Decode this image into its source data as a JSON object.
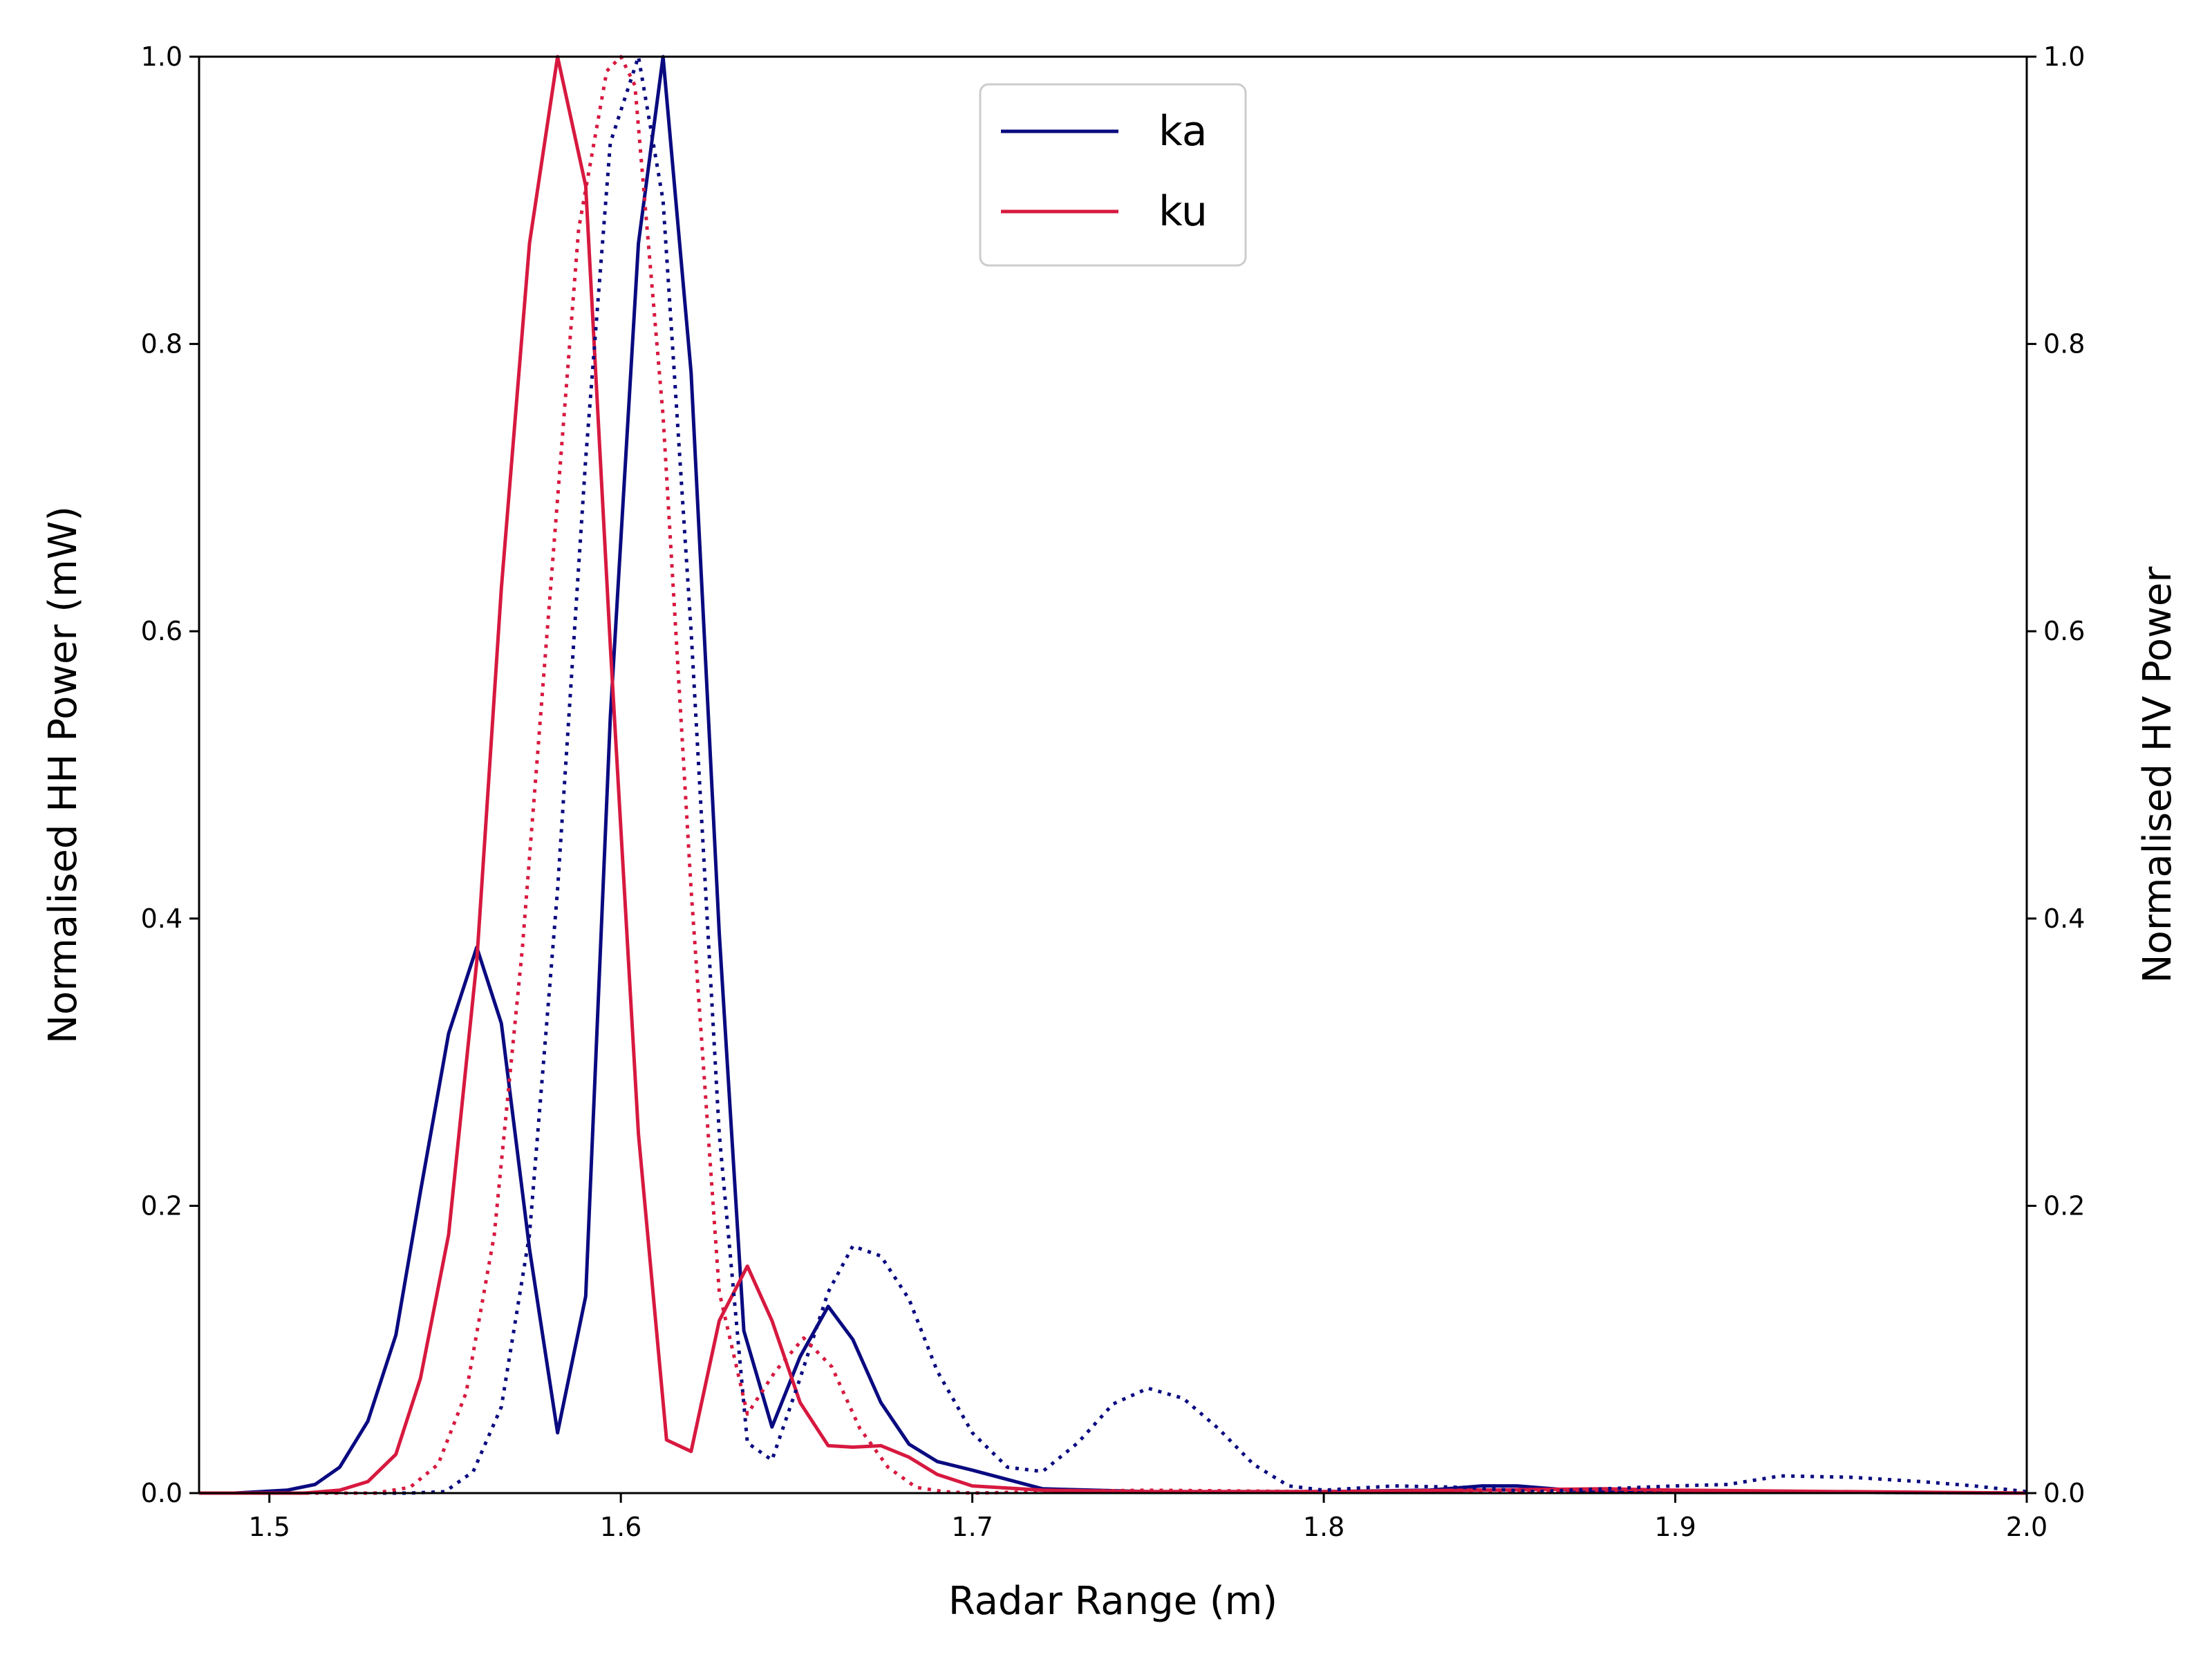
{
  "chart_data": {
    "type": "line",
    "title": "",
    "xlabel": "Radar Range (m)",
    "ylabel": "Normalised HH Power (mW)",
    "y2label": "Normalised HV Power",
    "xlim": [
      1.48,
      2.0
    ],
    "ylim": [
      0.0,
      1.0
    ],
    "y2lim": [
      0.0,
      1.0
    ],
    "xticks": [
      "1.5",
      "1.6",
      "1.7",
      "1.8",
      "1.9",
      "2.0"
    ],
    "yticks": [
      "0.0",
      "0.2",
      "0.4",
      "0.6",
      "0.8",
      "1.0"
    ],
    "y2ticks": [
      "0.0",
      "0.2",
      "0.4",
      "0.6",
      "0.8",
      "1.0"
    ],
    "grid": false,
    "legend": {
      "placement": "upper-center",
      "entries": [
        "ka",
        "ku"
      ]
    },
    "colors": {
      "ka": "#0a0a80",
      "ku": "#d7193f"
    },
    "series": [
      {
        "name": "ka",
        "axis": "HH",
        "style": "solid",
        "color": "#0a0a80",
        "x": [
          1.48,
          1.49,
          1.505,
          1.513,
          1.52,
          1.528,
          1.536,
          1.543,
          1.551,
          1.559,
          1.566,
          1.574,
          1.582,
          1.59,
          1.597,
          1.605,
          1.612,
          1.62,
          1.628,
          1.635,
          1.643,
          1.651,
          1.659,
          1.666,
          1.674,
          1.682,
          1.69,
          1.7,
          1.72,
          1.75,
          1.8,
          1.83,
          1.845,
          1.855,
          1.87,
          1.9,
          2.0
        ],
        "y": [
          0.0,
          0.0,
          0.002,
          0.006,
          0.018,
          0.05,
          0.11,
          0.21,
          0.32,
          0.38,
          0.327,
          0.17,
          0.042,
          0.137,
          0.54,
          0.87,
          1.0,
          0.78,
          0.39,
          0.113,
          0.046,
          0.095,
          0.13,
          0.107,
          0.063,
          0.034,
          0.022,
          0.016,
          0.003,
          0.001,
          0.001,
          0.002,
          0.005,
          0.005,
          0.002,
          0.001,
          0.0
        ]
      },
      {
        "name": "ku",
        "axis": "HH",
        "style": "solid",
        "color": "#d7193f",
        "x": [
          1.48,
          1.51,
          1.52,
          1.528,
          1.536,
          1.543,
          1.551,
          1.559,
          1.566,
          1.574,
          1.582,
          1.59,
          1.597,
          1.605,
          1.613,
          1.62,
          1.628,
          1.636,
          1.643,
          1.651,
          1.659,
          1.666,
          1.674,
          1.682,
          1.69,
          1.7,
          1.72,
          1.75,
          1.8,
          1.88,
          1.9,
          2.0
        ],
        "y": [
          0.0,
          0.0,
          0.002,
          0.008,
          0.027,
          0.08,
          0.18,
          0.37,
          0.63,
          0.87,
          1.0,
          0.91,
          0.59,
          0.25,
          0.037,
          0.029,
          0.12,
          0.158,
          0.12,
          0.063,
          0.033,
          0.032,
          0.033,
          0.025,
          0.013,
          0.005,
          0.002,
          0.001,
          0.001,
          0.003,
          0.002,
          0.0
        ]
      },
      {
        "name": "ka",
        "axis": "HV",
        "style": "dotted",
        "color": "#0a0a80",
        "x": [
          1.48,
          1.54,
          1.55,
          1.558,
          1.566,
          1.574,
          1.582,
          1.59,
          1.597,
          1.605,
          1.612,
          1.62,
          1.628,
          1.636,
          1.643,
          1.651,
          1.659,
          1.666,
          1.674,
          1.682,
          1.69,
          1.7,
          1.71,
          1.72,
          1.73,
          1.74,
          1.75,
          1.76,
          1.77,
          1.78,
          1.79,
          1.8,
          1.82,
          1.84,
          1.86,
          1.88,
          1.9,
          1.915,
          1.93,
          1.95,
          1.97,
          1.985,
          2.0
        ],
        "y": [
          0.0,
          0.0,
          0.001,
          0.015,
          0.06,
          0.18,
          0.42,
          0.72,
          0.94,
          1.0,
          0.9,
          0.6,
          0.25,
          0.035,
          0.023,
          0.08,
          0.14,
          0.172,
          0.165,
          0.135,
          0.085,
          0.042,
          0.018,
          0.015,
          0.035,
          0.062,
          0.073,
          0.066,
          0.045,
          0.02,
          0.005,
          0.002,
          0.005,
          0.004,
          0.001,
          0.003,
          0.005,
          0.006,
          0.012,
          0.011,
          0.008,
          0.005,
          0.001
        ]
      },
      {
        "name": "ku",
        "axis": "HV",
        "style": "dotted",
        "color": "#d7193f",
        "x": [
          1.48,
          1.53,
          1.54,
          1.548,
          1.556,
          1.564,
          1.572,
          1.58,
          1.588,
          1.596,
          1.6,
          1.604,
          1.612,
          1.62,
          1.628,
          1.636,
          1.644,
          1.652,
          1.66,
          1.668,
          1.676,
          1.684,
          1.692,
          1.7,
          1.72,
          1.75,
          1.8,
          1.85,
          1.9,
          2.0
        ],
        "y": [
          0.0,
          0.0,
          0.004,
          0.02,
          0.07,
          0.18,
          0.38,
          0.63,
          0.88,
          0.99,
          1.0,
          0.98,
          0.75,
          0.42,
          0.14,
          0.055,
          0.085,
          0.108,
          0.088,
          0.045,
          0.018,
          0.004,
          0.001,
          0.0,
          0.001,
          0.002,
          0.001,
          0.001,
          0.001,
          0.0
        ]
      }
    ]
  }
}
